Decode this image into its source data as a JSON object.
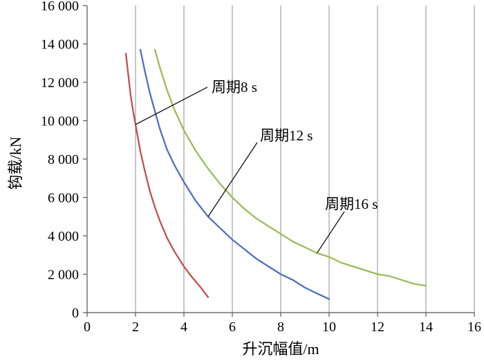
{
  "chart_data": {
    "type": "line",
    "xlabel": "升沉幅值/m",
    "ylabel": "钩载/kN",
    "xlim": [
      0,
      16
    ],
    "ylim": [
      0,
      16000
    ],
    "x_ticks": [
      0,
      2,
      4,
      6,
      8,
      10,
      12,
      14,
      16
    ],
    "x_tick_labels": [
      "0",
      "2",
      "4",
      "6",
      "8",
      "10",
      "12",
      "14",
      "16"
    ],
    "y_ticks": [
      0,
      2000,
      4000,
      6000,
      8000,
      10000,
      12000,
      14000,
      16000
    ],
    "y_tick_labels": [
      "0",
      "2 000",
      "4 000",
      "6 000",
      "8 000",
      "10 000",
      "12 000",
      "14 000",
      "16 000"
    ],
    "grid": "vertical",
    "legend": "none",
    "series": [
      {
        "key": "p8",
        "color": "#c0504d",
        "x": [
          1.6,
          1.7,
          1.8,
          1.9,
          2.0,
          2.2,
          2.4,
          2.6,
          2.8,
          3.0,
          3.3,
          3.6,
          4.0,
          4.3,
          4.7,
          5.0
        ],
        "y": [
          13500,
          12400,
          11300,
          10500,
          9800,
          8400,
          7300,
          6300,
          5500,
          4800,
          3900,
          3200,
          2400,
          1900,
          1300,
          800
        ]
      },
      {
        "key": "p12",
        "color": "#4f6fbf",
        "x": [
          2.2,
          2.4,
          2.6,
          2.8,
          3.0,
          3.3,
          3.6,
          4.0,
          4.5,
          5.0,
          5.5,
          6.0,
          6.5,
          7.0,
          7.5,
          8.0,
          8.5,
          9.0,
          9.5,
          10.0
        ],
        "y": [
          13700,
          12500,
          11400,
          10500,
          9600,
          8500,
          7700,
          6800,
          5800,
          5000,
          4400,
          3800,
          3300,
          2800,
          2400,
          2000,
          1700,
          1300,
          1000,
          700
        ]
      },
      {
        "key": "p16",
        "color": "#9bbb59",
        "x": [
          2.8,
          3.0,
          3.3,
          3.6,
          4.0,
          4.5,
          5.0,
          5.5,
          6.0,
          6.5,
          7.0,
          7.5,
          8.0,
          8.5,
          9.0,
          9.5,
          10.0,
          10.5,
          11.0,
          11.5,
          12.0,
          12.5,
          13.0,
          13.5,
          14.0
        ],
        "y": [
          13700,
          12800,
          11600,
          10600,
          9500,
          8400,
          7500,
          6700,
          6000,
          5400,
          4900,
          4500,
          4100,
          3700,
          3400,
          3100,
          2900,
          2600,
          2400,
          2200,
          2000,
          1900,
          1700,
          1500,
          1400
        ]
      }
    ],
    "annotations": [
      {
        "key": "p8",
        "text": "周期8 s",
        "point": [
          2.0,
          9800
        ]
      },
      {
        "key": "p12",
        "text": "周期12 s",
        "point": [
          5.0,
          5000
        ]
      },
      {
        "key": "p16",
        "text": "周期16 s",
        "point": [
          9.5,
          3100
        ]
      }
    ]
  }
}
